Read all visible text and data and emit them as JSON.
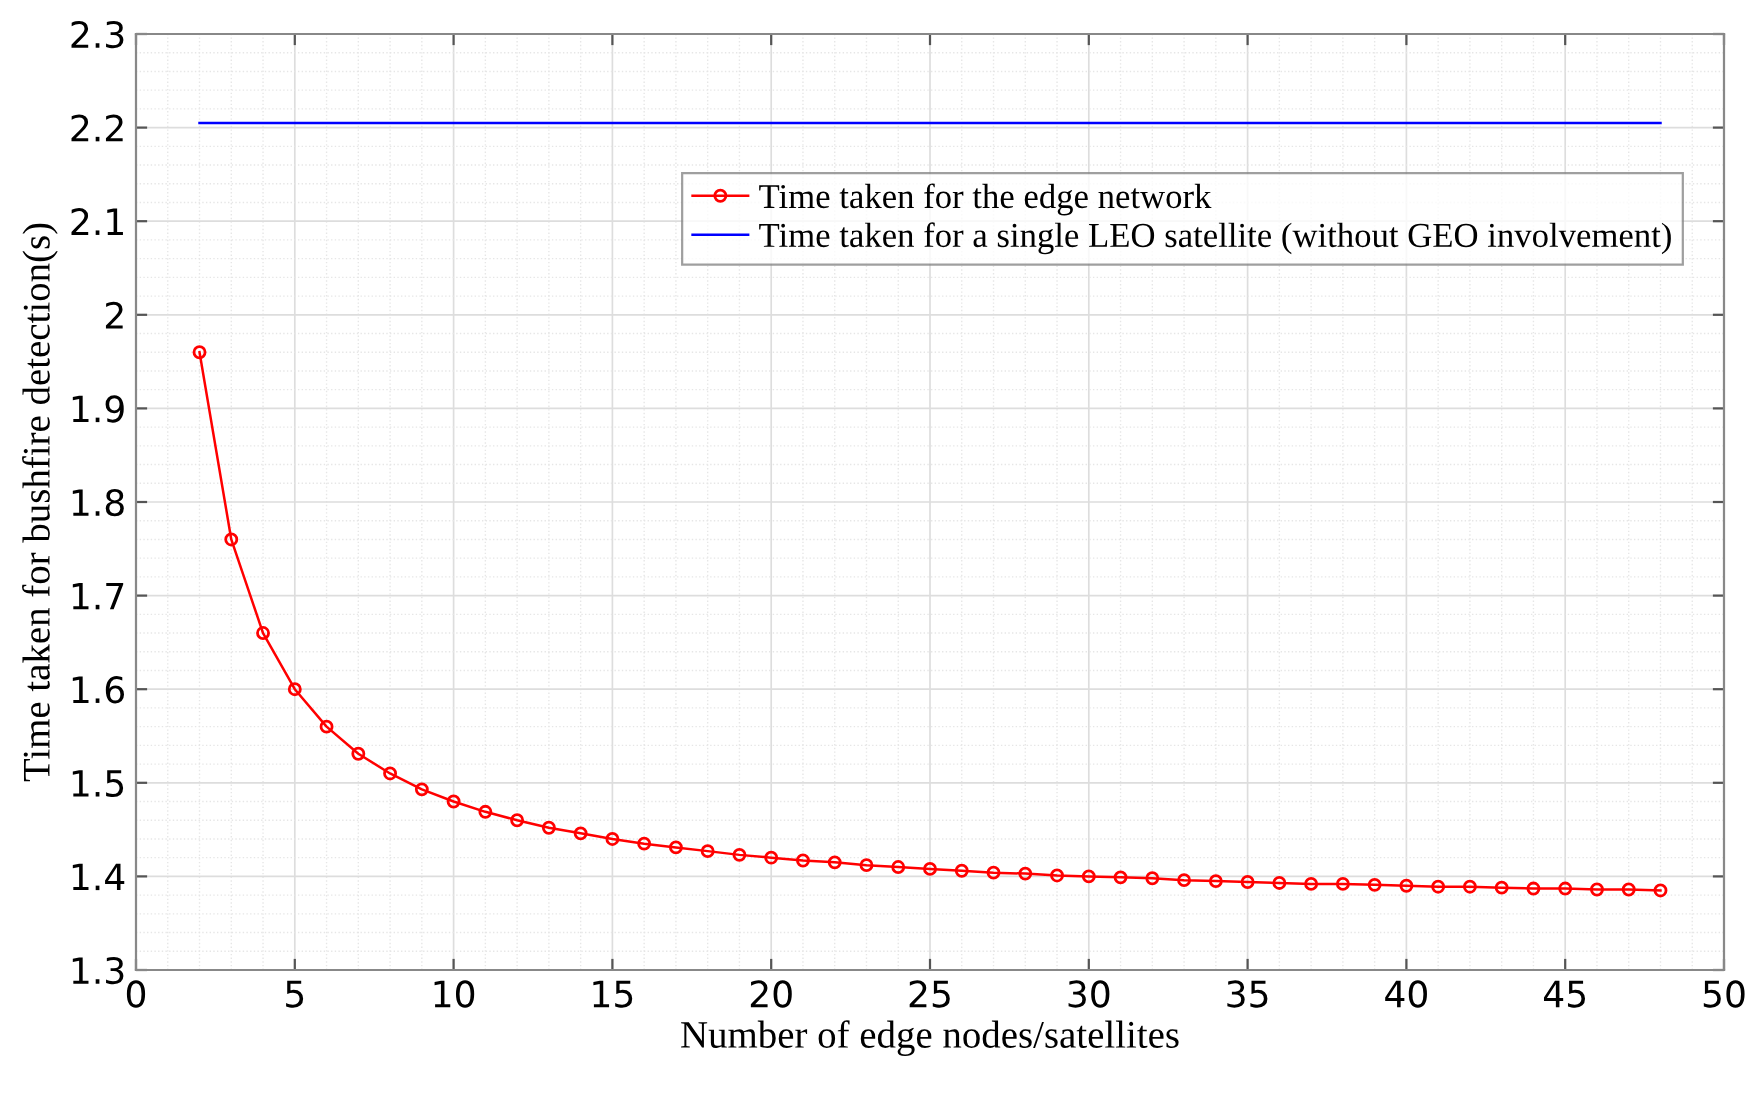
{
  "chart_data": {
    "type": "line",
    "xlabel": "Number of edge nodes/satellites",
    "ylabel": "Time taken for bushfire detection(s)",
    "xlim": [
      0,
      50
    ],
    "xticks": [
      0,
      5,
      10,
      15,
      20,
      25,
      30,
      35,
      40,
      45,
      50
    ],
    "ylim": [
      1.3,
      2.3
    ],
    "yticks": [
      1.3,
      1.4,
      1.5,
      1.6,
      1.7,
      1.8,
      1.9,
      2,
      2.1,
      2.2,
      2.3
    ],
    "grid": true,
    "legend": "top right",
    "series": [
      {
        "name": "Time taken for the edge network",
        "color": "#ff0000",
        "marker": "circle",
        "x": [
          2,
          3,
          4,
          5,
          6,
          7,
          8,
          9,
          10,
          11,
          12,
          13,
          14,
          15,
          16,
          17,
          18,
          19,
          20,
          21,
          22,
          23,
          24,
          25,
          26,
          27,
          28,
          29,
          30,
          31,
          32,
          33,
          34,
          35,
          36,
          37,
          38,
          39,
          40,
          41,
          42,
          43,
          44,
          45,
          46,
          47,
          48
        ],
        "values": [
          1.96,
          1.76,
          1.66,
          1.6,
          1.56,
          1.531,
          1.51,
          1.493,
          1.48,
          1.469,
          1.46,
          1.452,
          1.446,
          1.44,
          1.435,
          1.431,
          1.427,
          1.423,
          1.42,
          1.417,
          1.415,
          1.412,
          1.41,
          1.408,
          1.406,
          1.404,
          1.403,
          1.401,
          1.4,
          1.399,
          1.398,
          1.396,
          1.395,
          1.394,
          1.393,
          1.392,
          1.392,
          1.391,
          1.39,
          1.389,
          1.389,
          1.388,
          1.387,
          1.387,
          1.386,
          1.386,
          1.385
        ]
      },
      {
        "name": "Time taken for a single LEO satellite (without GEO involvement)",
        "color": "#0000ff",
        "x": [
          2,
          48
        ],
        "values": [
          2.205,
          2.205
        ]
      }
    ]
  }
}
